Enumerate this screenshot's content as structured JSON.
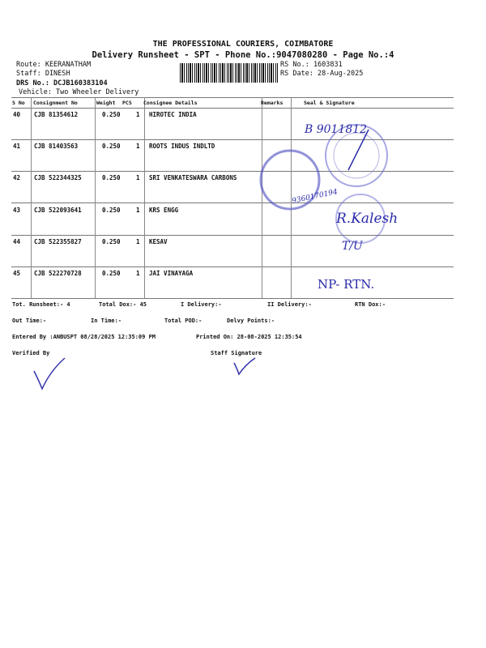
{
  "header": {
    "company": "THE PROFESSIONAL COURIERS, COIMBATORE",
    "subtitle": "Delivery Runsheet - SPT - Phone No.:9047080280 - Page No.:4",
    "route": "Route: KEERANATHAM",
    "staff": "Staff: DINESH",
    "drs": "DRS No.: DCJB160383104",
    "vehicle": "Vehicle: Two Wheeler Delivery",
    "rs_no": "RS No.: 1603831",
    "rs_date": "RS Date: 28-Aug-2025"
  },
  "table": {
    "columns": [
      "S No",
      "Consignment No",
      "Weight",
      "PCS",
      "Consignee Details",
      "Remarks",
      "Seal & Signature"
    ],
    "rows": [
      {
        "sno": "40",
        "cn": "CJB 81354612",
        "weight": "0.250",
        "pcs": "1",
        "consignee": "HIROTEC INDIA"
      },
      {
        "sno": "41",
        "cn": "CJB 81403563",
        "weight": "0.250",
        "pcs": "1",
        "consignee": "ROOTS INDUS INDLTD"
      },
      {
        "sno": "42",
        "cn": "CJB 522344325",
        "weight": "0.250",
        "pcs": "1",
        "consignee": "SRI VENKATESWARA CARBONS"
      },
      {
        "sno": "43",
        "cn": "CJB 522093641",
        "weight": "0.250",
        "pcs": "1",
        "consignee": "KRS ENGG"
      },
      {
        "sno": "44",
        "cn": "CJB 522355827",
        "weight": "0.250",
        "pcs": "1",
        "consignee": "KESAV"
      },
      {
        "sno": "45",
        "cn": "CJB 522270728",
        "weight": "0.250",
        "pcs": "1",
        "consignee": "JAI VINAYAGA"
      }
    ]
  },
  "handwriting": {
    "sig1": "B 9011812",
    "sig2": "R.Kalesh",
    "tu": "T/U",
    "np": "NP- RTN.",
    "num": "9360170194"
  },
  "footer": {
    "tot_runsheet": "Tot. Runsheet:- 4",
    "total_dox": "Total Dox:-  45",
    "i_delivery": "I Delivery:-",
    "ii_delivery": "II Delivery:-",
    "rtn_dox": "RTN Dox:-",
    "out_time": "Out Time:-",
    "in_time": "In Time:-",
    "total_pod": "Total POD:-",
    "delvy_points": "Delvy Points:-",
    "entered_by": "Entered By :ANBUSPT 08/28/2025 12:35:09 PM",
    "printed_on": "Printed On: 28-08-2025 12:35:54",
    "verified_by": "Verified By",
    "staff_signature": "Staff Signature"
  },
  "colors": {
    "ink": "#111111",
    "stamp": "#4a4ac0"
  }
}
